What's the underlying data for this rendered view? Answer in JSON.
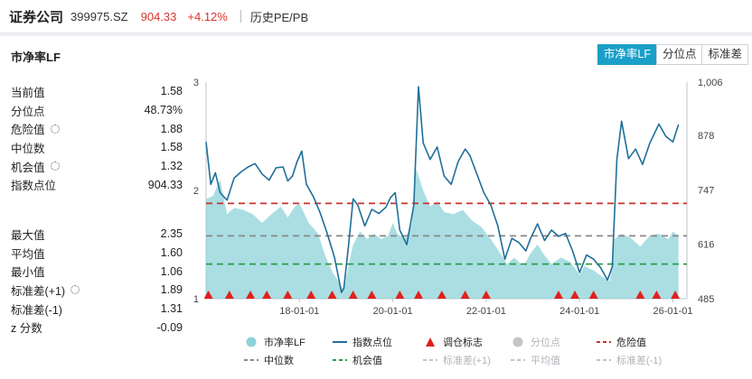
{
  "header": {
    "name": "证券公司",
    "code": "399975.SZ",
    "price": "904.33",
    "change": "+4.12%",
    "history_label": "历史PE/PB"
  },
  "panel": {
    "title": "市净率LF",
    "tabs": [
      {
        "label": "市净率LF",
        "active": true
      },
      {
        "label": "分位点",
        "active": false
      },
      {
        "label": "标准差",
        "active": false
      }
    ]
  },
  "stats_top": [
    {
      "label": "当前值",
      "value": "1.58",
      "gear": false
    },
    {
      "label": "分位点",
      "value": "48.73%",
      "gear": false
    },
    {
      "label": "危险值",
      "value": "1.88",
      "gear": true
    },
    {
      "label": "中位数",
      "value": "1.58",
      "gear": false
    },
    {
      "label": "机会值",
      "value": "1.32",
      "gear": true
    },
    {
      "label": "指数点位",
      "value": "904.33",
      "gear": false
    }
  ],
  "stats_bottom": [
    {
      "label": "最大值",
      "value": "2.35",
      "gear": false
    },
    {
      "label": "平均值",
      "value": "1.60",
      "gear": false
    },
    {
      "label": "最小值",
      "value": "1.06",
      "gear": false
    },
    {
      "label": "标准差(+1)",
      "value": "1.89",
      "gear": true
    },
    {
      "label": "标准差(-1)",
      "value": "1.31",
      "gear": false
    },
    {
      "label": "z 分数",
      "value": "-0.09",
      "gear": false
    }
  ],
  "chart_data": {
    "type": "area",
    "left_axis": {
      "min": 1,
      "max": 3,
      "ticks": [
        "1",
        "2",
        "3"
      ]
    },
    "right_axis": {
      "min": 485,
      "max": 1006,
      "ticks": [
        "485",
        "616",
        "747",
        "878",
        "1,006"
      ]
    },
    "x_range": [
      2016.0,
      2026.3
    ],
    "x_ticks": [
      {
        "x": 2018.0,
        "label": "18-01-01"
      },
      {
        "x": 2020.0,
        "label": "20-01-01"
      },
      {
        "x": 2022.0,
        "label": "22-01-01"
      },
      {
        "x": 2024.0,
        "label": "24-01-01"
      },
      {
        "x": 2026.0,
        "label": "26-01-01"
      }
    ],
    "reference_lines": [
      {
        "name": "危险值",
        "value": 1.88,
        "color": "#c8312b"
      },
      {
        "name": "中位数",
        "value": 1.58,
        "color": "#888888"
      },
      {
        "name": "机会值",
        "value": 1.32,
        "color": "#2a9d4a"
      }
    ],
    "series": [
      {
        "name": "市净率LF",
        "axis": "left",
        "color": "#8dd3da",
        "points": [
          [
            2016.0,
            1.92
          ],
          [
            2016.15,
            1.95
          ],
          [
            2016.3,
            2.1
          ],
          [
            2016.45,
            1.78
          ],
          [
            2016.6,
            1.84
          ],
          [
            2016.8,
            1.82
          ],
          [
            2017.0,
            1.78
          ],
          [
            2017.2,
            1.7
          ],
          [
            2017.4,
            1.78
          ],
          [
            2017.6,
            1.85
          ],
          [
            2017.75,
            1.75
          ],
          [
            2017.9,
            1.85
          ],
          [
            2018.0,
            1.88
          ],
          [
            2018.2,
            1.7
          ],
          [
            2018.4,
            1.6
          ],
          [
            2018.55,
            1.4
          ],
          [
            2018.7,
            1.25
          ],
          [
            2018.85,
            1.15
          ],
          [
            2018.95,
            1.08
          ],
          [
            2019.05,
            1.3
          ],
          [
            2019.15,
            1.5
          ],
          [
            2019.3,
            1.62
          ],
          [
            2019.45,
            1.55
          ],
          [
            2019.6,
            1.6
          ],
          [
            2019.75,
            1.55
          ],
          [
            2019.9,
            1.58
          ],
          [
            2020.0,
            1.7
          ],
          [
            2020.1,
            1.6
          ],
          [
            2020.25,
            1.55
          ],
          [
            2020.4,
            1.68
          ],
          [
            2020.5,
            2.2
          ],
          [
            2020.65,
            2.0
          ],
          [
            2020.8,
            1.85
          ],
          [
            2020.95,
            1.9
          ],
          [
            2021.1,
            1.8
          ],
          [
            2021.3,
            1.78
          ],
          [
            2021.5,
            1.82
          ],
          [
            2021.7,
            1.72
          ],
          [
            2021.9,
            1.66
          ],
          [
            2022.1,
            1.55
          ],
          [
            2022.3,
            1.42
          ],
          [
            2022.45,
            1.32
          ],
          [
            2022.6,
            1.38
          ],
          [
            2022.8,
            1.3
          ],
          [
            2022.95,
            1.42
          ],
          [
            2023.1,
            1.5
          ],
          [
            2023.25,
            1.4
          ],
          [
            2023.4,
            1.32
          ],
          [
            2023.6,
            1.38
          ],
          [
            2023.8,
            1.34
          ],
          [
            2024.0,
            1.22
          ],
          [
            2024.1,
            1.3
          ],
          [
            2024.3,
            1.26
          ],
          [
            2024.5,
            1.2
          ],
          [
            2024.65,
            1.16
          ],
          [
            2024.75,
            1.55
          ],
          [
            2024.9,
            1.6
          ],
          [
            2025.1,
            1.56
          ],
          [
            2025.3,
            1.48
          ],
          [
            2025.5,
            1.58
          ],
          [
            2025.7,
            1.6
          ],
          [
            2025.9,
            1.55
          ],
          [
            2026.0,
            1.62
          ],
          [
            2026.12,
            1.58
          ]
        ]
      },
      {
        "name": "指数点位",
        "axis": "right",
        "color": "#1f6f99",
        "points": [
          [
            2016.0,
            862
          ],
          [
            2016.1,
            760
          ],
          [
            2016.2,
            788
          ],
          [
            2016.3,
            740
          ],
          [
            2016.45,
            722
          ],
          [
            2016.6,
            775
          ],
          [
            2016.75,
            790
          ],
          [
            2016.9,
            802
          ],
          [
            2017.05,
            810
          ],
          [
            2017.2,
            785
          ],
          [
            2017.35,
            770
          ],
          [
            2017.5,
            800
          ],
          [
            2017.65,
            802
          ],
          [
            2017.75,
            768
          ],
          [
            2017.85,
            780
          ],
          [
            2017.95,
            815
          ],
          [
            2018.05,
            840
          ],
          [
            2018.15,
            760
          ],
          [
            2018.3,
            730
          ],
          [
            2018.45,
            690
          ],
          [
            2018.6,
            640
          ],
          [
            2018.75,
            585
          ],
          [
            2018.9,
            500
          ],
          [
            2018.95,
            510
          ],
          [
            2019.05,
            610
          ],
          [
            2019.15,
            725
          ],
          [
            2019.25,
            710
          ],
          [
            2019.4,
            660
          ],
          [
            2019.55,
            700
          ],
          [
            2019.7,
            690
          ],
          [
            2019.85,
            705
          ],
          [
            2019.95,
            728
          ],
          [
            2020.05,
            740
          ],
          [
            2020.15,
            650
          ],
          [
            2020.3,
            615
          ],
          [
            2020.45,
            710
          ],
          [
            2020.55,
            995
          ],
          [
            2020.65,
            860
          ],
          [
            2020.8,
            820
          ],
          [
            2020.95,
            850
          ],
          [
            2021.1,
            780
          ],
          [
            2021.25,
            760
          ],
          [
            2021.4,
            815
          ],
          [
            2021.55,
            845
          ],
          [
            2021.65,
            830
          ],
          [
            2021.8,
            785
          ],
          [
            2021.95,
            740
          ],
          [
            2022.1,
            710
          ],
          [
            2022.25,
            660
          ],
          [
            2022.4,
            580
          ],
          [
            2022.55,
            630
          ],
          [
            2022.7,
            620
          ],
          [
            2022.85,
            600
          ],
          [
            2022.95,
            630
          ],
          [
            2023.1,
            665
          ],
          [
            2023.25,
            625
          ],
          [
            2023.4,
            650
          ],
          [
            2023.55,
            635
          ],
          [
            2023.7,
            642
          ],
          [
            2023.85,
            600
          ],
          [
            2024.0,
            548
          ],
          [
            2024.15,
            590
          ],
          [
            2024.3,
            580
          ],
          [
            2024.45,
            560
          ],
          [
            2024.6,
            530
          ],
          [
            2024.7,
            562
          ],
          [
            2024.8,
            820
          ],
          [
            2024.9,
            912
          ],
          [
            2025.05,
            822
          ],
          [
            2025.2,
            845
          ],
          [
            2025.35,
            808
          ],
          [
            2025.5,
            858
          ],
          [
            2025.7,
            905
          ],
          [
            2025.85,
            875
          ],
          [
            2026.0,
            862
          ],
          [
            2026.12,
            904
          ]
        ]
      }
    ],
    "rebalance_markers": [
      2016.05,
      2016.5,
      2016.95,
      2017.3,
      2017.75,
      2018.25,
      2018.7,
      2019.15,
      2019.55,
      2020.15,
      2020.55,
      2021.05,
      2021.55,
      2022.0,
      2023.55,
      2023.9,
      2024.3,
      2025.3,
      2025.65,
      2026.05
    ],
    "legend": [
      {
        "label": "市净率LF",
        "kind": "dot",
        "color": "#8dd3da",
        "active": true
      },
      {
        "label": "指数点位",
        "kind": "line",
        "color": "#1f6f99",
        "active": true
      },
      {
        "label": "调仓标志",
        "kind": "triangle",
        "color": "#e0201c",
        "active": true
      },
      {
        "label": "分位点",
        "kind": "dot",
        "color": "#c4c4c4",
        "active": false
      },
      {
        "label": "危险值",
        "kind": "dash",
        "color": "#c8312b",
        "active": true
      },
      {
        "label": "中位数",
        "kind": "dash",
        "color": "#888888",
        "active": true
      },
      {
        "label": "机会值",
        "kind": "dash",
        "color": "#2a9d4a",
        "active": true
      },
      {
        "label": "标准差(+1)",
        "kind": "dash",
        "color": "#c4c4c4",
        "active": false
      },
      {
        "label": "平均值",
        "kind": "dash",
        "color": "#c4c4c4",
        "active": false
      },
      {
        "label": "标准差(-1)",
        "kind": "dash",
        "color": "#c4c4c4",
        "active": false
      }
    ]
  }
}
